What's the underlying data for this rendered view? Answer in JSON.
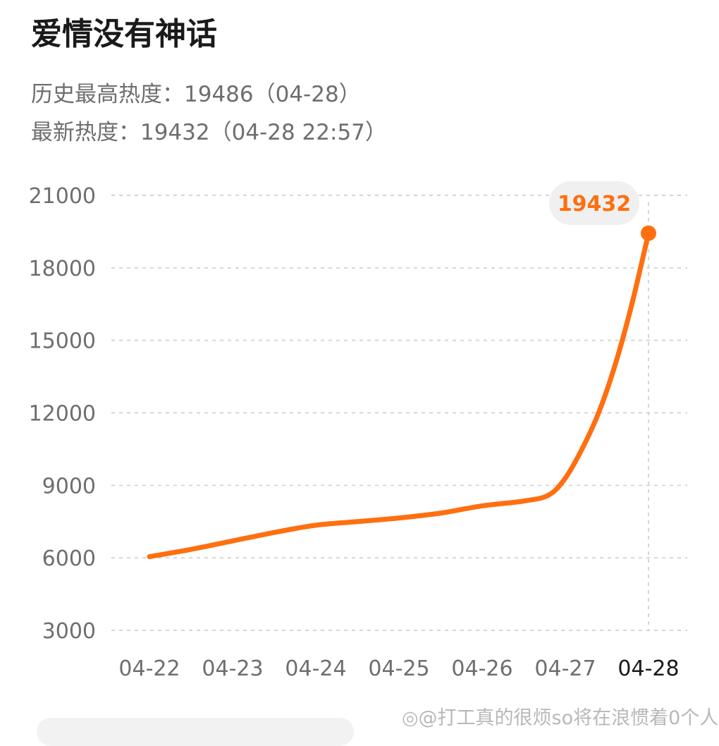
{
  "header": {
    "title": "爱情没有神话",
    "history_peak": "历史最高热度：19486（04-28）",
    "latest": "最新热度：19432（04-28 22:57）"
  },
  "colors": {
    "line": "#ff6f0f",
    "label_bg": "#f0f0f0",
    "label_text": "#ff6f0f",
    "grid": "#d6d6d6",
    "tick": "#6e6e6e"
  },
  "watermark": "◎@打工真的很烦so将在浪惯着0个人",
  "chart_data": {
    "type": "line",
    "title": "",
    "xlabel": "",
    "ylabel": "",
    "x_ticks": [
      "04-22",
      "04-23",
      "04-24",
      "04-25",
      "04-26",
      "04-27",
      "04-28"
    ],
    "y_ticks": [
      3000,
      6000,
      9000,
      12000,
      15000,
      18000,
      21000
    ],
    "ylim": [
      3000,
      21000
    ],
    "grid": true,
    "highlight_label": "19432",
    "series": [
      {
        "x": [
          0,
          0.5,
          1,
          1.5,
          2,
          2.5,
          3,
          3.5,
          4,
          4.5,
          4.8,
          5,
          5.2,
          5.4,
          5.6,
          5.8,
          6
        ],
        "values": [
          6050,
          6350,
          6700,
          7050,
          7350,
          7500,
          7650,
          7850,
          8150,
          8350,
          8600,
          9300,
          10500,
          12000,
          14000,
          16500,
          19432
        ]
      }
    ]
  }
}
